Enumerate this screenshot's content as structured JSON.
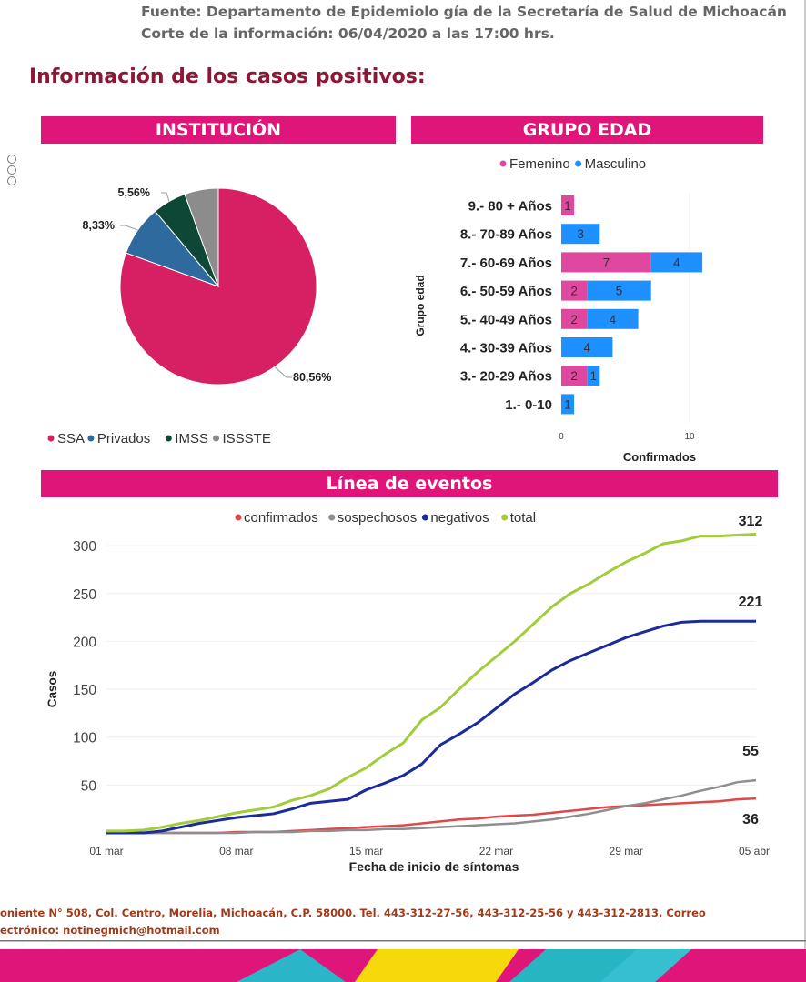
{
  "header": {
    "source": "Fuente: Departamento de Epidemiolo gía de la Secretaría de Salud de Michoacán",
    "cutoff": "Corte de la información: 06/04/2020 a las 17:00 hrs.",
    "title": "Información de los casos positivos:"
  },
  "colors": {
    "band": "#e0157a",
    "title": "#8e1637",
    "ssa": "#d71f63",
    "privados": "#2e6a9e",
    "imss": "#0f4736",
    "issste": "#8c8c8c",
    "femenino": "#e0479e",
    "masculino": "#1e90ff",
    "confirmados": "#e04848",
    "sospechosos": "#8e8e8e",
    "negativos": "#1c2b9a",
    "total": "#a2cc3c"
  },
  "footer": {
    "line1": "oniente N° 508, Col. Centro, Morelia, Michoacán, C.P. 58000. Tel. 443-312-27-56, 443-312-25-56 y 443-312-2813, Correo",
    "line2": "ectrónico: notinegmich@hotmail.com"
  },
  "chart_data": [
    {
      "type": "pie",
      "title": "INSTITUCIÓN",
      "slices": [
        {
          "label": "SSA",
          "value": 80.56,
          "text": "80,56%"
        },
        {
          "label": "Privados",
          "value": 8.33,
          "text": "8,33%"
        },
        {
          "label": "IMSS",
          "value": 5.56,
          "text": "5,56%"
        },
        {
          "label": "ISSSTE",
          "value": 5.56,
          "text": ""
        }
      ],
      "legend": [
        "SSA",
        "Privados",
        "IMSS",
        "ISSSTE"
      ]
    },
    {
      "type": "bar",
      "orientation": "horizontal",
      "stacked": true,
      "title": "GRUPO EDAD",
      "ylabel": "Grupo edad",
      "xlabel": "Confirmados",
      "xlim": [
        0,
        11
      ],
      "xticks": [
        0,
        10
      ],
      "categories": [
        "9.- 80 + Años",
        "8.- 70-89 Años",
        "7.- 60-69 Años",
        "6.- 50-59 Años",
        "5.- 40-49 Años",
        "4.- 30-39 Años",
        "3.- 20-29 Años",
        "1.- 0-10"
      ],
      "series": [
        {
          "name": "Femenino",
          "values": [
            1,
            0,
            7,
            2,
            2,
            0,
            2,
            0
          ]
        },
        {
          "name": "Masculino",
          "values": [
            0,
            3,
            4,
            5,
            4,
            4,
            1,
            1
          ]
        }
      ]
    },
    {
      "type": "line",
      "title": "Línea de eventos",
      "xlabel": "Fecha de inicio de síntomas",
      "ylabel": "Casos",
      "xticks": [
        "01 mar",
        "08 mar",
        "15 mar",
        "22 mar",
        "29 mar",
        "05 abr"
      ],
      "yticks": [
        50,
        100,
        150,
        200,
        250,
        300
      ],
      "ylim": [
        0,
        320
      ],
      "xlim": [
        1,
        36
      ],
      "x": [
        1,
        2,
        3,
        4,
        5,
        6,
        7,
        8,
        9,
        10,
        11,
        12,
        13,
        14,
        15,
        16,
        17,
        18,
        19,
        20,
        21,
        22,
        23,
        24,
        25,
        26,
        27,
        28,
        29,
        30,
        31,
        32,
        33,
        34,
        35,
        36
      ],
      "series": [
        {
          "name": "confirmados",
          "end_label": "36",
          "values": [
            0,
            0,
            0,
            0,
            0,
            0,
            0,
            1,
            1,
            1,
            2,
            3,
            4,
            5,
            6,
            7,
            8,
            10,
            12,
            14,
            15,
            17,
            18,
            19,
            21,
            23,
            25,
            27,
            28,
            29,
            30,
            31,
            32,
            33,
            35,
            36
          ]
        },
        {
          "name": "sospechosos",
          "end_label": "55",
          "values": [
            0,
            0,
            0,
            0,
            0,
            0,
            0,
            0,
            1,
            1,
            1,
            2,
            2,
            3,
            3,
            4,
            4,
            5,
            6,
            7,
            8,
            9,
            10,
            12,
            14,
            17,
            20,
            24,
            28,
            31,
            35,
            39,
            44,
            48,
            53,
            55
          ]
        },
        {
          "name": "negativos",
          "end_label": "221",
          "values": [
            0,
            0,
            0,
            2,
            6,
            10,
            13,
            16,
            18,
            20,
            25,
            31,
            33,
            35,
            45,
            52,
            60,
            72,
            92,
            103,
            115,
            130,
            145,
            157,
            170,
            180,
            188,
            196,
            204,
            210,
            216,
            220,
            221,
            221,
            221,
            221
          ]
        },
        {
          "name": "total",
          "end_label": "312",
          "values": [
            2,
            2,
            3,
            6,
            10,
            13,
            17,
            21,
            24,
            27,
            34,
            39,
            46,
            58,
            68,
            82,
            94,
            118,
            131,
            150,
            168,
            184,
            200,
            218,
            236,
            250,
            260,
            272,
            283,
            292,
            302,
            305,
            310,
            310,
            311,
            312
          ]
        }
      ],
      "legend": [
        "confirmados",
        "sospechosos",
        "negativos",
        "total"
      ]
    }
  ]
}
